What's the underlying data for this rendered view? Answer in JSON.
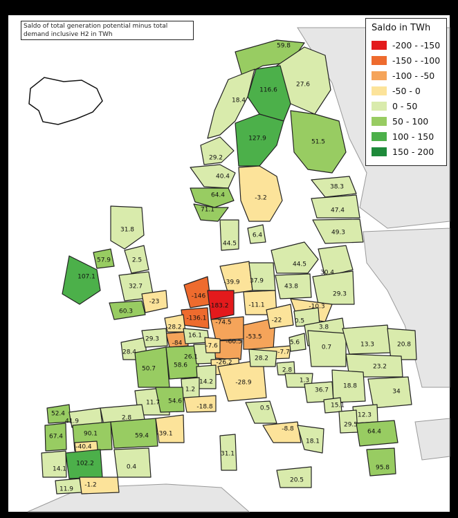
{
  "title": "Saldo of total generation potential minus total demand inclusive H2 in TWh",
  "legend": {
    "title": "Saldo in TWh",
    "items": [
      {
        "label": "-200 - -150",
        "color": "#e31a1c"
      },
      {
        "label": "-150 - -100",
        "color": "#ee6b2e"
      },
      {
        "label": "-100 - -50",
        "color": "#f5a45a"
      },
      {
        "label": "-50 - 0",
        "color": "#fce39a"
      },
      {
        "label": "0 - 50",
        "color": "#d9ebac"
      },
      {
        "label": "50 - 100",
        "color": "#98cc62"
      },
      {
        "label": "100 - 150",
        "color": "#4cb04a"
      },
      {
        "label": "150 - 200",
        "color": "#1e8a3a"
      }
    ]
  },
  "regions": [
    {
      "id": "no-north",
      "value": "59.8"
    },
    {
      "id": "fi-north",
      "value": "27.6"
    },
    {
      "id": "se-north",
      "value": "116.6"
    },
    {
      "id": "no-mid",
      "value": "18.4"
    },
    {
      "id": "se-mid",
      "value": "127.9"
    },
    {
      "id": "fi-south",
      "value": "51.5"
    },
    {
      "id": "no-sw",
      "value": "29.2"
    },
    {
      "id": "no-west",
      "value": "40.4"
    },
    {
      "id": "no-south",
      "value": "64.4"
    },
    {
      "id": "no-se",
      "value": "71.1"
    },
    {
      "id": "se-south",
      "value": "-3.2"
    },
    {
      "id": "ee",
      "value": "38.3"
    },
    {
      "id": "lv",
      "value": "47.4"
    },
    {
      "id": "lt",
      "value": "49.3"
    },
    {
      "id": "dk-east",
      "value": "6.4"
    },
    {
      "id": "dk-west",
      "value": "44.5"
    },
    {
      "id": "gb-scotland",
      "value": "31.8"
    },
    {
      "id": "ni",
      "value": "57.9"
    },
    {
      "id": "ie",
      "value": "107.1"
    },
    {
      "id": "gb-north",
      "value": "2.5"
    },
    {
      "id": "gb-mid",
      "value": "32.7"
    },
    {
      "id": "gb-south",
      "value": "60.3"
    },
    {
      "id": "gb-se",
      "value": "-23"
    },
    {
      "id": "pl-north",
      "value": "44.5"
    },
    {
      "id": "pl-ne",
      "value": "30.4"
    },
    {
      "id": "pl-mid",
      "value": "43.8"
    },
    {
      "id": "pl-east",
      "value": "29.3"
    },
    {
      "id": "pl-south",
      "value": "-10.3"
    },
    {
      "id": "de-north",
      "value": "-39.9"
    },
    {
      "id": "de-ne",
      "value": "37.9"
    },
    {
      "id": "de-east",
      "value": "-11.1"
    },
    {
      "id": "nl",
      "value": "-146"
    },
    {
      "id": "de-west",
      "value": "-183.2"
    },
    {
      "id": "be",
      "value": "-136.1"
    },
    {
      "id": "de-mid",
      "value": "-74.5"
    },
    {
      "id": "de-sw",
      "value": "-60.5"
    },
    {
      "id": "de-south",
      "value": "-53.5"
    },
    {
      "id": "cz",
      "value": "-22"
    },
    {
      "id": "sk",
      "value": "0.5"
    },
    {
      "id": "at",
      "value": "-7.7"
    },
    {
      "id": "at-east",
      "value": "5.6"
    },
    {
      "id": "fr-north",
      "value": "-28.2"
    },
    {
      "id": "fr-paris",
      "value": "-84"
    },
    {
      "id": "fr-ne",
      "value": "16.1"
    },
    {
      "id": "fr-brittany",
      "value": "28.4"
    },
    {
      "id": "fr-normandy",
      "value": "29.3"
    },
    {
      "id": "fr-center",
      "value": "50.7"
    },
    {
      "id": "fr-burgundy",
      "value": "58.6"
    },
    {
      "id": "fr-grandest",
      "value": "26.1"
    },
    {
      "id": "fr-alsace",
      "value": "-7.6"
    },
    {
      "id": "ch",
      "value": "-26.2"
    },
    {
      "id": "fr-rhone",
      "value": "14.2"
    },
    {
      "id": "fr-auvergne",
      "value": "1.2"
    },
    {
      "id": "fr-sw",
      "value": "11.7"
    },
    {
      "id": "fr-south",
      "value": "54.6"
    },
    {
      "id": "fr-paca",
      "value": "-18.8"
    },
    {
      "id": "it-north",
      "value": "-28.9"
    },
    {
      "id": "it-ne",
      "value": "28.2"
    },
    {
      "id": "it-central",
      "value": "0.5"
    },
    {
      "id": "it-south",
      "value": "-8.8"
    },
    {
      "id": "it-puglia",
      "value": "18.1"
    },
    {
      "id": "it-sardinia",
      "value": "31.1"
    },
    {
      "id": "it-sicily",
      "value": "20.5"
    },
    {
      "id": "hu",
      "value": "3.8"
    },
    {
      "id": "ro-west",
      "value": "0.7"
    },
    {
      "id": "ro-north",
      "value": "13.3"
    },
    {
      "id": "ro-ne",
      "value": "20.8"
    },
    {
      "id": "ro-south",
      "value": "23.2"
    },
    {
      "id": "si",
      "value": "2.8"
    },
    {
      "id": "hr",
      "value": "1.3"
    },
    {
      "id": "ba",
      "value": "36.7"
    },
    {
      "id": "rs",
      "value": "18.8"
    },
    {
      "id": "bg",
      "value": "34"
    },
    {
      "id": "me",
      "value": "15.1"
    },
    {
      "id": "mk",
      "value": "12.3"
    },
    {
      "id": "al",
      "value": "29.5"
    },
    {
      "id": "gr",
      "value": "64.4"
    },
    {
      "id": "gr-south",
      "value": "95.8"
    },
    {
      "id": "es-nw",
      "value": "52.4"
    },
    {
      "id": "es-north",
      "value": "41.9"
    },
    {
      "id": "es-ne",
      "value": "2.8"
    },
    {
      "id": "pt-north",
      "value": "67.4"
    },
    {
      "id": "es-castile",
      "value": "90.1"
    },
    {
      "id": "es-aragon",
      "value": "59.4"
    },
    {
      "id": "es-catalonia",
      "value": "-39.1"
    },
    {
      "id": "es-madrid",
      "value": "-40.4"
    },
    {
      "id": "pt-south",
      "value": "14.1"
    },
    {
      "id": "es-extremadura",
      "value": "102.2"
    },
    {
      "id": "es-valencia",
      "value": "0.4"
    },
    {
      "id": "es-andalusia-w",
      "value": "11.9"
    },
    {
      "id": "es-andalusia-e",
      "value": "-1.2"
    }
  ]
}
